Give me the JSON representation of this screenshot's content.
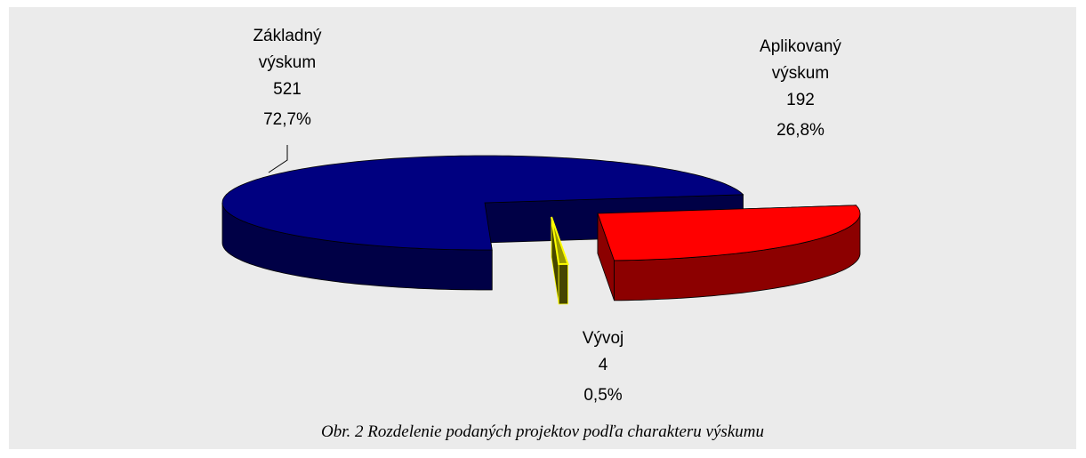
{
  "chart_data": {
    "type": "pie",
    "caption": "Obr. 2 Rozdelenie podaných projektov podľa charakteru výskumu",
    "categories": [
      "Základný výskum",
      "Aplikovaný výskum",
      "Vývoj"
    ],
    "values": [
      521,
      192,
      4
    ],
    "percents": [
      72.7,
      26.8,
      0.5
    ],
    "percent_labels": [
      "72,7%",
      "26,8%",
      "0,5%"
    ],
    "colors": [
      "#000080",
      "#ff0000",
      "#808000"
    ]
  }
}
